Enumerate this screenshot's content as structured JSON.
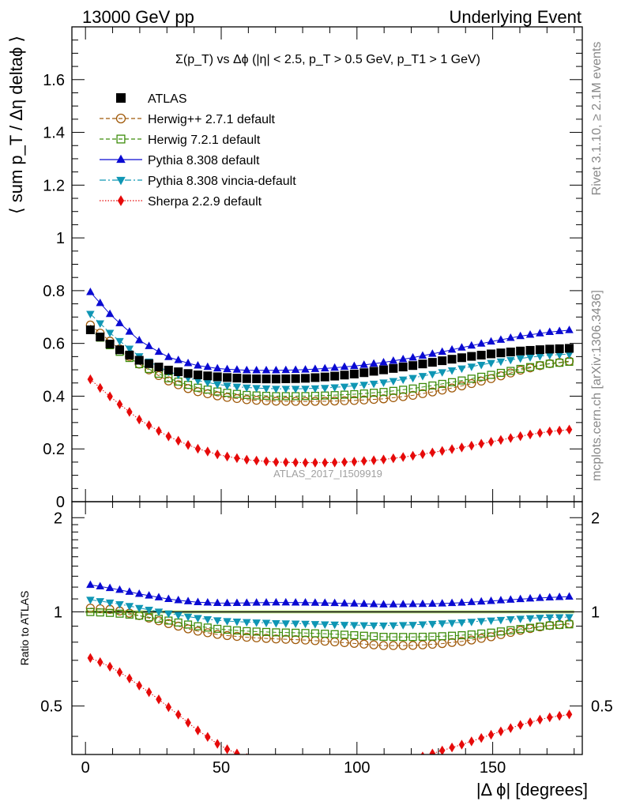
{
  "header": {
    "left": "13000 GeV pp",
    "right": "Underlying Event"
  },
  "side_labels": {
    "rivet": "Rivet 3.1.10, ≥ 2.1M events",
    "mcplots": "mcplots.cern.ch [arXiv:1306.3436]"
  },
  "watermark": "ATLAS_2017_I1509919",
  "chart_data": [
    {
      "type": "scatter",
      "panel": "main",
      "title": "Σ(p_T) vs Δϕ (|η| < 2.5, p_T > 0.5 GeV, p_T1 > 1 GeV)",
      "ylabel": "⟨ sum p_T / Δη deltaϕ ⟩",
      "ylim": [
        0,
        1.8
      ],
      "xlim": [
        -5,
        183
      ],
      "yticks": [
        0,
        0.2,
        0.4,
        0.6,
        0.8,
        1,
        1.2,
        1.4,
        1.6
      ],
      "ytick_labels": [
        "0",
        "0.2",
        "0.4",
        "0.6",
        "0.8",
        "1",
        "1.2",
        "1.4",
        "1.6"
      ],
      "legend_position": "top-left",
      "series": [
        {
          "name": "ATLAS",
          "color": "#000000",
          "marker": "square-filled",
          "line": "none",
          "curve": [
            [
              0,
              0.665
            ],
            [
              10,
              0.59
            ],
            [
              20,
              0.535
            ],
            [
              30,
              0.5
            ],
            [
              40,
              0.482
            ],
            [
              50,
              0.472
            ],
            [
              60,
              0.466
            ],
            [
              70,
              0.465
            ],
            [
              80,
              0.467
            ],
            [
              90,
              0.474
            ],
            [
              100,
              0.485
            ],
            [
              110,
              0.5
            ],
            [
              120,
              0.515
            ],
            [
              130,
              0.532
            ],
            [
              140,
              0.548
            ],
            [
              150,
              0.561
            ],
            [
              160,
              0.571
            ],
            [
              170,
              0.578
            ],
            [
              180,
              0.582
            ]
          ]
        },
        {
          "name": "Herwig++ 2.7.1 default",
          "color": "#a05a0a",
          "marker": "circle-open",
          "line": "dashed",
          "curve": [
            [
              0,
              0.685
            ],
            [
              10,
              0.6
            ],
            [
              20,
              0.52
            ],
            [
              30,
              0.46
            ],
            [
              40,
              0.42
            ],
            [
              50,
              0.398
            ],
            [
              60,
              0.386
            ],
            [
              70,
              0.381
            ],
            [
              80,
              0.38
            ],
            [
              90,
              0.381
            ],
            [
              100,
              0.384
            ],
            [
              110,
              0.39
            ],
            [
              120,
              0.402
            ],
            [
              130,
              0.42
            ],
            [
              140,
              0.442
            ],
            [
              150,
              0.468
            ],
            [
              160,
              0.498
            ],
            [
              170,
              0.522
            ],
            [
              180,
              0.535
            ]
          ]
        },
        {
          "name": "Herwig 7.2.1 default",
          "color": "#3c8c0a",
          "marker": "square-open",
          "line": "dashed",
          "curve": [
            [
              0,
              0.665
            ],
            [
              10,
              0.585
            ],
            [
              20,
              0.52
            ],
            [
              30,
              0.47
            ],
            [
              40,
              0.435
            ],
            [
              50,
              0.415
            ],
            [
              60,
              0.404
            ],
            [
              70,
              0.4
            ],
            [
              80,
              0.4
            ],
            [
              90,
              0.403
            ],
            [
              100,
              0.408
            ],
            [
              110,
              0.416
            ],
            [
              120,
              0.428
            ],
            [
              130,
              0.444
            ],
            [
              140,
              0.462
            ],
            [
              150,
              0.482
            ],
            [
              160,
              0.503
            ],
            [
              170,
              0.522
            ],
            [
              180,
              0.532
            ]
          ]
        },
        {
          "name": "Pythia 8.308 default",
          "color": "#0a0ad2",
          "marker": "triangle-up-filled",
          "line": "solid",
          "curve": [
            [
              0,
              0.815
            ],
            [
              10,
              0.7
            ],
            [
              20,
              0.61
            ],
            [
              30,
              0.55
            ],
            [
              40,
              0.518
            ],
            [
              50,
              0.503
            ],
            [
              60,
              0.498
            ],
            [
              70,
              0.498
            ],
            [
              80,
              0.5
            ],
            [
              90,
              0.506
            ],
            [
              100,
              0.515
            ],
            [
              110,
              0.528
            ],
            [
              120,
              0.545
            ],
            [
              130,
              0.565
            ],
            [
              140,
              0.587
            ],
            [
              150,
              0.608
            ],
            [
              160,
              0.627
            ],
            [
              170,
              0.642
            ],
            [
              180,
              0.652
            ]
          ]
        },
        {
          "name": "Pythia 8.308 vincia-default",
          "color": "#0f96b4",
          "marker": "triangle-down-filled",
          "line": "dashdot",
          "curve": [
            [
              0,
              0.73
            ],
            [
              10,
              0.63
            ],
            [
              20,
              0.55
            ],
            [
              30,
              0.495
            ],
            [
              40,
              0.462
            ],
            [
              50,
              0.442
            ],
            [
              60,
              0.432
            ],
            [
              70,
              0.428
            ],
            [
              80,
              0.428
            ],
            [
              90,
              0.432
            ],
            [
              100,
              0.44
            ],
            [
              110,
              0.452
            ],
            [
              120,
              0.468
            ],
            [
              130,
              0.488
            ],
            [
              140,
              0.508
            ],
            [
              150,
              0.527
            ],
            [
              160,
              0.543
            ],
            [
              170,
              0.555
            ],
            [
              180,
              0.56
            ]
          ]
        },
        {
          "name": "Sherpa 2.2.9 default",
          "color": "#e60a0a",
          "marker": "diamond-filled",
          "line": "dotted",
          "curve": [
            [
              0,
              0.48
            ],
            [
              10,
              0.39
            ],
            [
              20,
              0.31
            ],
            [
              30,
              0.25
            ],
            [
              40,
              0.205
            ],
            [
              50,
              0.175
            ],
            [
              60,
              0.158
            ],
            [
              70,
              0.15
            ],
            [
              80,
              0.148
            ],
            [
              90,
              0.148
            ],
            [
              100,
              0.152
            ],
            [
              110,
              0.16
            ],
            [
              120,
              0.173
            ],
            [
              130,
              0.19
            ],
            [
              140,
              0.208
            ],
            [
              150,
              0.228
            ],
            [
              160,
              0.248
            ],
            [
              170,
              0.265
            ],
            [
              180,
              0.275
            ]
          ]
        }
      ]
    },
    {
      "type": "scatter",
      "panel": "ratio",
      "ylabel": "Ratio to ATLAS",
      "xlabel": "|Δ ϕ| [degrees]",
      "ylim": [
        0.35,
        2.25
      ],
      "xlim": [
        -5,
        183
      ],
      "yticks": [
        0.5,
        1,
        2
      ],
      "ytick_labels": [
        "0.5",
        "1",
        "2"
      ],
      "xticks": [
        0,
        50,
        100,
        150
      ],
      "xtick_labels": [
        "0",
        "50",
        "100",
        "150"
      ],
      "reference_band": {
        "color": "#ccee99",
        "halfwidth": 0.012
      }
    }
  ]
}
